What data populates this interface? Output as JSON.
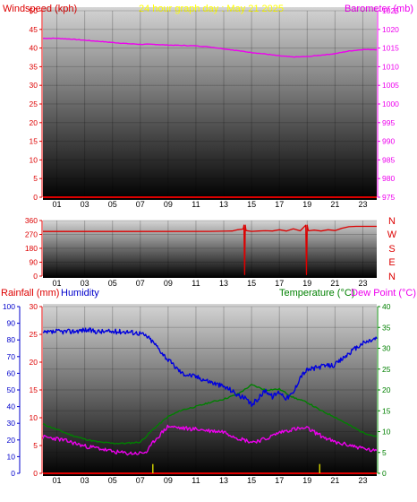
{
  "top": {
    "left_label": "Windspeed (kph)",
    "center_label": "24 hour graph day : May 21 2025",
    "right_label": "Barometer (mb)"
  },
  "middle": {
    "compass": [
      "N",
      "W",
      "S",
      "E",
      "N"
    ]
  },
  "bottom": {
    "rain_label": "Rainfall (mm)",
    "hum_label": "Humidity",
    "temp_label": "Temperature (°C)",
    "dew_label": "Dew Point (°C)"
  },
  "colors": {
    "wind": "#dd0000",
    "barometer": "#ee00ee",
    "title": "#ffff00",
    "direction": "#dd0000",
    "rain_axis": "#dd0000",
    "humidity": "#0000dd",
    "temperature": "#008000",
    "dewpoint": "#ee00ee",
    "rain_bar": "#cccc00"
  },
  "chart_data": [
    {
      "type": "line",
      "x_ticks": [
        "01",
        "03",
        "05",
        "07",
        "09",
        "11",
        "13",
        "15",
        "17",
        "19",
        "21",
        "23"
      ],
      "xlim": [
        0,
        24
      ],
      "y_left": {
        "label": "Windspeed (kph)",
        "ylim": [
          0,
          50
        ],
        "ticks": [
          0,
          5,
          10,
          15,
          20,
          25,
          30,
          35,
          40,
          45,
          50
        ]
      },
      "y_right": {
        "label": "Barometer (mb)",
        "ylim": [
          975,
          1025
        ],
        "ticks": [
          975,
          980,
          985,
          990,
          995,
          1000,
          1005,
          1010,
          1015,
          1020,
          1025
        ]
      },
      "series": [
        {
          "name": "Windspeed (kph)",
          "axis": "left",
          "x": [
            0,
            24
          ],
          "y": [
            0,
            0
          ]
        },
        {
          "name": "Barometer (mb)",
          "axis": "right",
          "x": [
            0,
            1,
            2,
            3,
            4,
            5,
            6,
            7,
            8,
            9,
            10,
            11,
            12,
            13,
            14,
            15,
            16,
            17,
            18,
            19,
            20,
            21,
            22,
            23,
            24
          ],
          "y": [
            1017.6,
            1017.6,
            1017.4,
            1017.1,
            1016.8,
            1016.5,
            1016.2,
            1016.0,
            1016.0,
            1015.8,
            1015.7,
            1015.6,
            1015.3,
            1014.8,
            1014.3,
            1013.8,
            1013.4,
            1012.9,
            1012.6,
            1012.7,
            1013.1,
            1013.5,
            1014.2,
            1014.6,
            1014.6
          ]
        }
      ]
    },
    {
      "type": "line",
      "x_ticks": [
        "01",
        "03",
        "05",
        "07",
        "09",
        "11",
        "13",
        "15",
        "17",
        "19",
        "21",
        "23"
      ],
      "xlim": [
        0,
        24
      ],
      "y_left": {
        "label": "",
        "ylim": [
          0,
          360
        ],
        "ticks": [
          0,
          90,
          180,
          270,
          360
        ]
      },
      "series": [
        {
          "name": "Wind direction",
          "x": [
            0,
            6,
            12,
            13.6,
            14.0,
            14.4,
            14.45,
            14.5,
            14.55,
            14.6,
            15,
            15.5,
            16,
            16.5,
            17,
            17.5,
            18,
            18.5,
            18.9,
            18.95,
            19.0,
            19.05,
            19.1,
            19.5,
            20,
            20.5,
            21,
            21.5,
            22,
            22.5,
            23,
            24
          ],
          "y": [
            289,
            289,
            290,
            292,
            300,
            305,
            330,
            10,
            330,
            295,
            290,
            292,
            294,
            292,
            300,
            292,
            306,
            293,
            330,
            10,
            330,
            305,
            293,
            298,
            292,
            300,
            295,
            310,
            320,
            322,
            322,
            322
          ]
        }
      ]
    },
    {
      "type": "line",
      "x_ticks": [
        "01",
        "03",
        "05",
        "07",
        "09",
        "11",
        "13",
        "15",
        "17",
        "19",
        "21",
        "23"
      ],
      "xlim": [
        0,
        24
      ],
      "y_left_outer": {
        "label": "Humidity",
        "ylim": [
          0,
          100
        ],
        "ticks": [
          0,
          10,
          20,
          30,
          40,
          50,
          60,
          70,
          80,
          90,
          100
        ]
      },
      "y_left_inner": {
        "label": "Rainfall (mm)",
        "ylim": [
          0,
          30
        ],
        "ticks": [
          0,
          5,
          10,
          15,
          20,
          25,
          30
        ]
      },
      "y_right": {
        "label": "Temperature (°C)",
        "ylim": [
          0,
          40
        ],
        "ticks": [
          0,
          5,
          10,
          15,
          20,
          25,
          30,
          35,
          40
        ]
      },
      "series": [
        {
          "name": "Humidity",
          "axis": "outer",
          "x": [
            0,
            1,
            2,
            3,
            4,
            5,
            6,
            7,
            7.5,
            8,
            9,
            10,
            11,
            12,
            13,
            13.5,
            14,
            14.5,
            15,
            15.5,
            16,
            16.5,
            17,
            17.5,
            18,
            18.5,
            19,
            20,
            21,
            22,
            23,
            24
          ],
          "y": [
            84,
            85,
            85,
            86,
            85,
            85,
            85,
            84,
            82,
            78,
            68,
            60,
            58,
            55,
            52,
            50,
            47,
            45,
            41,
            45,
            50,
            46,
            49,
            45,
            48,
            58,
            62,
            64,
            65,
            72,
            78,
            81
          ]
        },
        {
          "name": "Temperature (°C)",
          "axis": "right",
          "x": [
            0,
            1,
            2,
            3,
            4,
            5,
            6,
            7,
            8,
            9,
            10,
            11,
            12,
            13,
            14,
            15,
            16,
            17,
            18,
            19,
            20,
            21,
            22,
            23,
            24
          ],
          "y": [
            11.8,
            10.5,
            9.2,
            8.2,
            7.5,
            7.2,
            7.2,
            7.5,
            10.8,
            13.6,
            15.2,
            16.0,
            17.0,
            17.8,
            19.0,
            21.2,
            20.0,
            20.2,
            18.2,
            17.0,
            15.0,
            13.5,
            11.6,
            9.8,
            8.8
          ]
        },
        {
          "name": "Dew Point (°C)",
          "axis": "right",
          "x": [
            0,
            1,
            2,
            3,
            4,
            5,
            6,
            7,
            7.5,
            8,
            9,
            10,
            11,
            12,
            13,
            14,
            15,
            16,
            17,
            18,
            19,
            20,
            21,
            22,
            23,
            24
          ],
          "y": [
            8.7,
            8.3,
            7.5,
            6.5,
            6.0,
            5.2,
            4.8,
            4.8,
            5.2,
            7.8,
            11.3,
            10.8,
            10.6,
            10.2,
            10.0,
            8.5,
            7.5,
            8.2,
            9.8,
            10.6,
            10.8,
            9.0,
            7.4,
            6.8,
            6.0,
            5.2
          ]
        },
        {
          "name": "Rainfall (mm)",
          "axis": "inner",
          "x": [
            0,
            24
          ],
          "y": [
            0,
            0
          ]
        }
      ]
    }
  ]
}
